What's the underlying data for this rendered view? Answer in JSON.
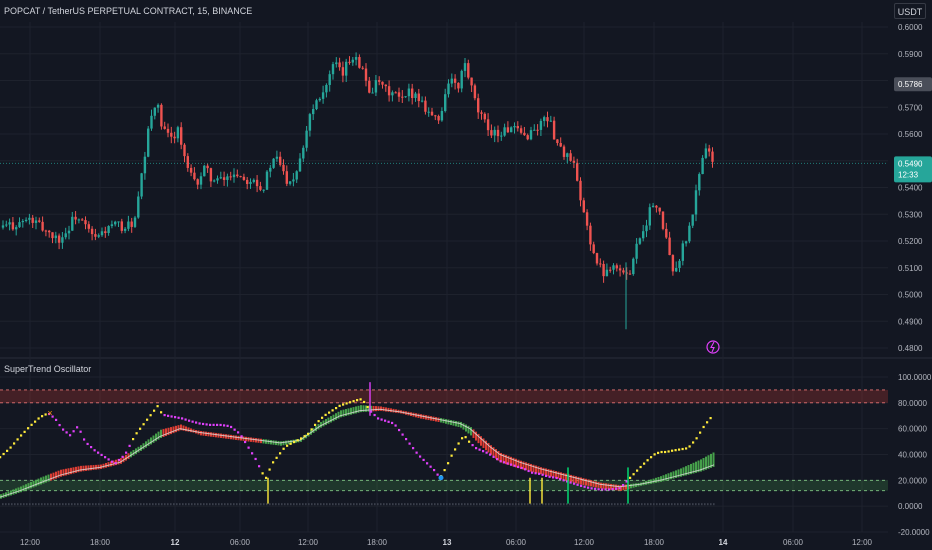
{
  "header": {
    "title": "POPCAT / TetherUS PERPETUAL CONTRACT, 15, BINANCE",
    "unit": "USDT"
  },
  "indicator": {
    "title": "SuperTrend Oscillator"
  },
  "colors": {
    "up": "#26a69a",
    "down": "#ef5350",
    "grid": "#1e222d",
    "osc_up": "#4caf50",
    "osc_down": "#f44336",
    "yellow": "#ffeb3b",
    "magenta": "#e040fb"
  },
  "chart_data": [
    {
      "type": "candlestick",
      "title": "POPCAT / TetherUS PERPETUAL CONTRACT, 15, BINANCE",
      "y_ticks": [
        "0.6000",
        "0.5900",
        "0.5800",
        "0.5700",
        "0.5600",
        "0.5500",
        "0.5400",
        "0.5300",
        "0.5200",
        "0.5100",
        "0.5000",
        "0.4900",
        "0.4800"
      ],
      "ylim": [
        0.48,
        0.6
      ],
      "last_price_label": "0.5490",
      "countdown_label": "12:33",
      "prior_price_label": "0.5786",
      "close_path": [
        [
          0,
          0.525
        ],
        [
          15,
          0.5262
        ],
        [
          30,
          0.528
        ],
        [
          40,
          0.5255
        ],
        [
          50,
          0.523
        ],
        [
          58,
          0.5205
        ],
        [
          66,
          0.523
        ],
        [
          75,
          0.5295
        ],
        [
          85,
          0.5255
        ],
        [
          95,
          0.5205
        ],
        [
          105,
          0.524
        ],
        [
          115,
          0.526
        ],
        [
          125,
          0.525
        ],
        [
          135,
          0.5275
        ],
        [
          145,
          0.552
        ],
        [
          150,
          0.565
        ],
        [
          156,
          0.573
        ],
        [
          162,
          0.562
        ],
        [
          170,
          0.558
        ],
        [
          178,
          0.562
        ],
        [
          186,
          0.548
        ],
        [
          195,
          0.541
        ],
        [
          205,
          0.547
        ],
        [
          215,
          0.542
        ],
        [
          225,
          0.543
        ],
        [
          235,
          0.546
        ],
        [
          245,
          0.543
        ],
        [
          255,
          0.544
        ],
        [
          262,
          0.5385
        ],
        [
          270,
          0.548
        ],
        [
          278,
          0.551
        ],
        [
          286,
          0.543
        ],
        [
          294,
          0.544
        ],
        [
          302,
          0.554
        ],
        [
          310,
          0.568
        ],
        [
          318,
          0.574
        ],
        [
          326,
          0.578
        ],
        [
          334,
          0.586
        ],
        [
          342,
          0.582
        ],
        [
          350,
          0.588
        ],
        [
          356,
          0.59
        ],
        [
          362,
          0.584
        ],
        [
          370,
          0.576
        ],
        [
          378,
          0.579
        ],
        [
          386,
          0.576
        ],
        [
          394,
          0.575
        ],
        [
          402,
          0.572
        ],
        [
          410,
          0.576
        ],
        [
          418,
          0.574
        ],
        [
          426,
          0.57
        ],
        [
          434,
          0.566
        ],
        [
          440,
          0.565
        ],
        [
          446,
          0.578
        ],
        [
          452,
          0.58
        ],
        [
          458,
          0.576
        ],
        [
          464,
          0.587
        ],
        [
          470,
          0.579
        ],
        [
          476,
          0.57
        ],
        [
          484,
          0.564
        ],
        [
          492,
          0.561
        ],
        [
          500,
          0.56
        ],
        [
          508,
          0.562
        ],
        [
          516,
          0.561
        ],
        [
          524,
          0.559
        ],
        [
          532,
          0.561
        ],
        [
          540,
          0.563
        ],
        [
          546,
          0.568
        ],
        [
          552,
          0.562
        ],
        [
          558,
          0.556
        ],
        [
          566,
          0.552
        ],
        [
          574,
          0.548
        ],
        [
          580,
          0.535
        ],
        [
          588,
          0.524
        ],
        [
          596,
          0.512
        ],
        [
          604,
          0.508
        ],
        [
          612,
          0.512
        ],
        [
          620,
          0.509
        ],
        [
          628,
          0.506
        ],
        [
          634,
          0.516
        ],
        [
          640,
          0.522
        ],
        [
          646,
          0.527
        ],
        [
          652,
          0.534
        ],
        [
          658,
          0.531
        ],
        [
          664,
          0.525
        ],
        [
          670,
          0.512
        ],
        [
          676,
          0.509
        ],
        [
          682,
          0.517
        ],
        [
          688,
          0.522
        ],
        [
          694,
          0.533
        ],
        [
          700,
          0.548
        ],
        [
          706,
          0.556
        ],
        [
          712,
          0.549
        ]
      ]
    },
    {
      "type": "line",
      "title": "SuperTrend Oscillator",
      "y_ticks": [
        "100.0000",
        "80.0000",
        "60.0000",
        "40.0000",
        "20.0000",
        "0.0000",
        "-20.0000"
      ],
      "ylim": [
        -20,
        100
      ],
      "x_ticks": [
        "12:00",
        "18:00",
        "12",
        "06:00",
        "12:00",
        "18:00",
        "13",
        "06:00",
        "12:00",
        "18:00",
        "14",
        "06:00",
        "12:00"
      ],
      "upper_band": [
        80,
        90
      ],
      "lower_band": [
        12,
        20
      ],
      "stop_marker": "×",
      "hist_series": [
        [
          0,
          8
        ],
        [
          20,
          14
        ],
        [
          40,
          21
        ],
        [
          60,
          27
        ],
        [
          80,
          30
        ],
        [
          100,
          31
        ],
        [
          120,
          36
        ],
        [
          140,
          46
        ],
        [
          160,
          58
        ],
        [
          180,
          62
        ],
        [
          200,
          56
        ],
        [
          220,
          54
        ],
        [
          240,
          52
        ],
        [
          260,
          50
        ],
        [
          280,
          48
        ],
        [
          300,
          51
        ],
        [
          320,
          64
        ],
        [
          340,
          73
        ],
        [
          360,
          77
        ],
        [
          380,
          76
        ],
        [
          400,
          73
        ],
        [
          420,
          69
        ],
        [
          440,
          66
        ],
        [
          460,
          62
        ],
        [
          470,
          56
        ],
        [
          480,
          48
        ],
        [
          490,
          41
        ],
        [
          500,
          35
        ],
        [
          520,
          30
        ],
        [
          540,
          26
        ],
        [
          560,
          22
        ],
        [
          580,
          18
        ],
        [
          600,
          15
        ],
        [
          620,
          13
        ],
        [
          640,
          17
        ],
        [
          660,
          22
        ],
        [
          680,
          28
        ],
        [
          700,
          35
        ],
        [
          714,
          41
        ]
      ],
      "signal_series": [
        [
          0,
          7
        ],
        [
          20,
          12
        ],
        [
          40,
          18
        ],
        [
          60,
          24
        ],
        [
          80,
          28
        ],
        [
          100,
          30
        ],
        [
          120,
          34
        ],
        [
          140,
          44
        ],
        [
          160,
          54
        ],
        [
          180,
          60
        ],
        [
          200,
          57
        ],
        [
          220,
          55
        ],
        [
          240,
          53
        ],
        [
          260,
          51
        ],
        [
          280,
          49
        ],
        [
          300,
          51
        ],
        [
          320,
          62
        ],
        [
          340,
          70
        ],
        [
          360,
          74
        ],
        [
          380,
          75
        ],
        [
          400,
          73
        ],
        [
          420,
          70
        ],
        [
          440,
          67
        ],
        [
          460,
          64
        ],
        [
          470,
          60
        ],
        [
          480,
          53
        ],
        [
          490,
          46
        ],
        [
          500,
          40
        ],
        [
          520,
          34
        ],
        [
          540,
          29
        ],
        [
          560,
          25
        ],
        [
          580,
          21
        ],
        [
          600,
          17
        ],
        [
          620,
          15
        ],
        [
          640,
          17
        ],
        [
          660,
          20
        ],
        [
          680,
          24
        ],
        [
          700,
          28
        ],
        [
          714,
          32
        ]
      ],
      "fast_series": [
        [
          0,
          38
        ],
        [
          10,
          45
        ],
        [
          20,
          54
        ],
        [
          30,
          62
        ],
        [
          40,
          69
        ],
        [
          48,
          72
        ],
        [
          55,
          68
        ],
        [
          62,
          60
        ],
        [
          70,
          55
        ],
        [
          78,
          62
        ],
        [
          85,
          50
        ],
        [
          95,
          43
        ],
        [
          105,
          38
        ],
        [
          115,
          33
        ],
        [
          125,
          40
        ],
        [
          135,
          55
        ],
        [
          145,
          65
        ],
        [
          152,
          72
        ],
        [
          158,
          78
        ],
        [
          162,
          71
        ],
        [
          168,
          70
        ],
        [
          175,
          69
        ],
        [
          182,
          68
        ],
        [
          190,
          66
        ],
        [
          200,
          64
        ],
        [
          210,
          63
        ],
        [
          220,
          63
        ],
        [
          230,
          62
        ],
        [
          240,
          56
        ],
        [
          248,
          46
        ],
        [
          256,
          36
        ],
        [
          262,
          26
        ],
        [
          266,
          22
        ],
        [
          272,
          33
        ],
        [
          278,
          39
        ],
        [
          285,
          46
        ],
        [
          292,
          49
        ],
        [
          300,
          52
        ],
        [
          308,
          56
        ],
        [
          316,
          64
        ],
        [
          324,
          70
        ],
        [
          332,
          74
        ],
        [
          340,
          78
        ],
        [
          348,
          80
        ],
        [
          356,
          82
        ],
        [
          362,
          83
        ],
        [
          370,
          74
        ],
        [
          378,
          68
        ],
        [
          386,
          66
        ],
        [
          394,
          64
        ],
        [
          402,
          56
        ],
        [
          410,
          48
        ],
        [
          418,
          40
        ],
        [
          426,
          34
        ],
        [
          434,
          28
        ],
        [
          440,
          22
        ],
        [
          446,
          30
        ],
        [
          452,
          40
        ],
        [
          458,
          48
        ],
        [
          464,
          55
        ],
        [
          470,
          49
        ],
        [
          476,
          45
        ],
        [
          482,
          43
        ],
        [
          488,
          41
        ],
        [
          494,
          38
        ],
        [
          500,
          35
        ],
        [
          508,
          33
        ],
        [
          516,
          31
        ],
        [
          524,
          29
        ],
        [
          532,
          26
        ],
        [
          540,
          25
        ],
        [
          548,
          23
        ],
        [
          556,
          22
        ],
        [
          564,
          20
        ],
        [
          572,
          18
        ],
        [
          580,
          16
        ],
        [
          590,
          14
        ],
        [
          600,
          13
        ],
        [
          610,
          13
        ],
        [
          620,
          14
        ],
        [
          630,
          22
        ],
        [
          640,
          30
        ],
        [
          648,
          36
        ],
        [
          654,
          40
        ],
        [
          660,
          42
        ],
        [
          666,
          42
        ],
        [
          672,
          43
        ],
        [
          680,
          44
        ],
        [
          688,
          45
        ],
        [
          696,
          52
        ],
        [
          704,
          62
        ],
        [
          710,
          68
        ],
        [
          714,
          70
        ]
      ],
      "bull_segments": [
        [
          0,
          48
        ],
        [
          130,
          162
        ],
        [
          262,
          370
        ],
        [
          440,
          470
        ],
        [
          628,
          714
        ]
      ],
      "yellow_spikes": [
        268,
        530,
        542
      ],
      "green_spikes": [
        568,
        628
      ],
      "magenta_spike": 370
    }
  ]
}
